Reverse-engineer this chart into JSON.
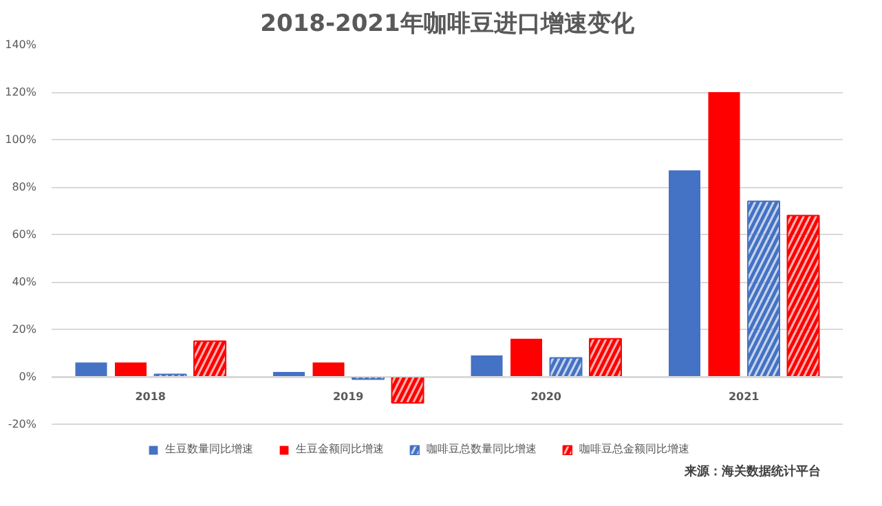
{
  "chart_data": {
    "type": "bar",
    "title": "2018-2021年咖啡豆进口增速变化",
    "categories": [
      "2018",
      "2019",
      "2020",
      "2021"
    ],
    "series": [
      {
        "name": "生豆数量同比增速",
        "color": "#4472c4",
        "values": [
          6,
          2,
          9,
          87
        ]
      },
      {
        "name": "生豆金额同比增速",
        "color": "#ff0000",
        "values": [
          6,
          6,
          16,
          120
        ]
      },
      {
        "name": "咖啡豆总数量同比增速",
        "color": "#4472c4",
        "values": [
          1,
          -1,
          8,
          74
        ]
      },
      {
        "name": "咖啡豆总金额同比增速",
        "color": "#ff0000",
        "values": [
          15,
          -11,
          16,
          68
        ]
      }
    ],
    "ylim": [
      -20,
      140
    ],
    "yticks": [
      {
        "value": -20,
        "label": "-20%"
      },
      {
        "value": 0,
        "label": "0%"
      },
      {
        "value": 20,
        "label": "20%"
      },
      {
        "value": 40,
        "label": "40%"
      },
      {
        "value": 60,
        "label": "60%"
      },
      {
        "value": 80,
        "label": "80%"
      },
      {
        "value": 100,
        "label": "100%"
      },
      {
        "value": 120,
        "label": "120%"
      },
      {
        "value": 140,
        "label": "140%"
      }
    ],
    "grid": "y",
    "legend": "bottom",
    "annotations": [
      "来源：海关数据统计平台"
    ]
  }
}
